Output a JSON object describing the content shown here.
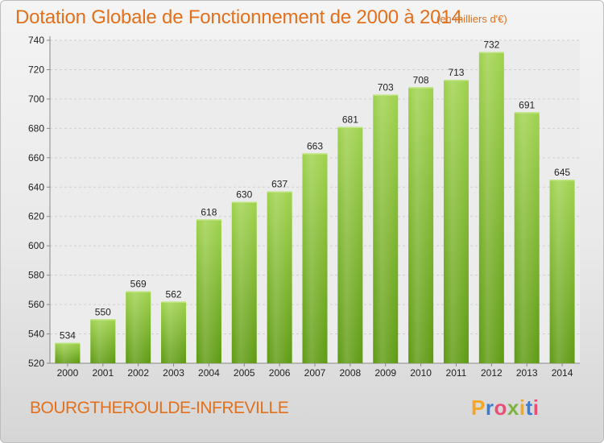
{
  "header": {
    "title": "Dotation Globale de Fonctionnement de 2000 à 2014",
    "unit": "(en milliers d'€)"
  },
  "footer": {
    "commune": "BOURGTHEROULDE-INFREVILLE",
    "logo_letters": [
      "P",
      "r",
      "o",
      "x",
      "i",
      "t",
      "i"
    ],
    "logo_colors": [
      "#f5a623",
      "#3a7bd5",
      "#e94e77",
      "#7cb342",
      "#f5a623",
      "#3a7bd5",
      "#e94e77"
    ]
  },
  "chart_data": {
    "type": "bar",
    "title": "Dotation Globale de Fonctionnement de 2000 à 2014",
    "subtitle": "(en milliers d'€)",
    "categories": [
      "2000",
      "2001",
      "2002",
      "2003",
      "2004",
      "2005",
      "2006",
      "2007",
      "2008",
      "2009",
      "2010",
      "2011",
      "2012",
      "2013",
      "2014"
    ],
    "values": [
      534,
      550,
      569,
      562,
      618,
      630,
      637,
      663,
      681,
      703,
      708,
      713,
      732,
      691,
      645
    ],
    "ylim": [
      520,
      740
    ],
    "yticks": [
      520,
      540,
      560,
      580,
      600,
      620,
      640,
      660,
      680,
      700,
      720,
      740
    ],
    "grid": true,
    "bar_color": "#8cc63f",
    "xlabel": "",
    "ylabel": ""
  }
}
